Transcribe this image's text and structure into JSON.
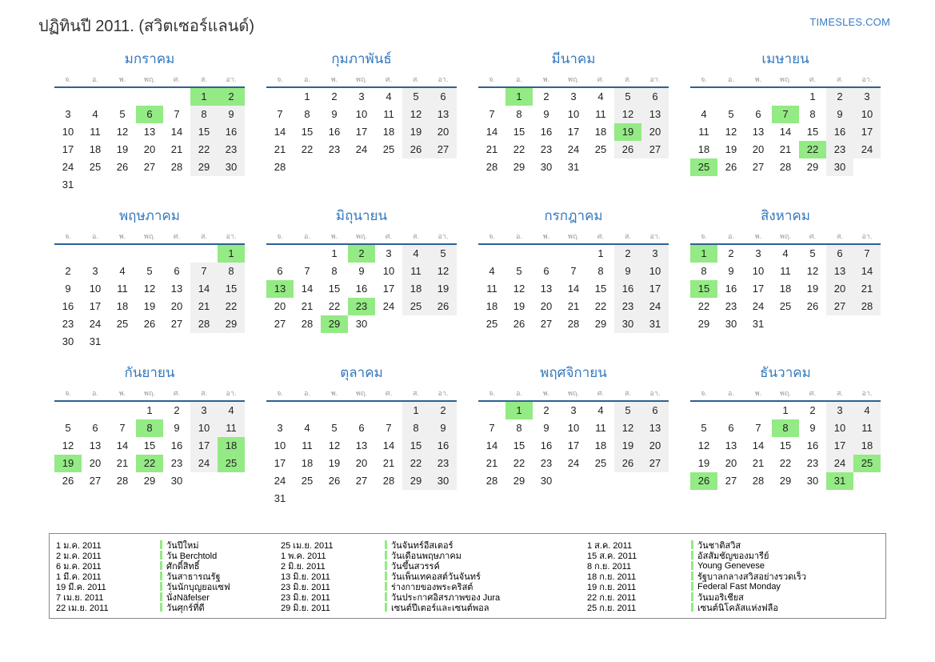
{
  "page": {
    "title": "ปฏิทินปี 2011. (สวิตเซอร์แลนด์)",
    "site": "TIMESLES.COM"
  },
  "colors": {
    "accent_blue": "#3478be",
    "header_line_blue": "#2d6194",
    "holiday_green": "#94ea84",
    "weekend_gray": "#f0f0f0"
  },
  "calendar": {
    "weekday_headers": [
      "จ.",
      "อ.",
      "พ.",
      "พฤ.",
      "ศ.",
      "ส.",
      "อา."
    ],
    "months": [
      {
        "name": "มกราคม",
        "start": 5,
        "days": 31,
        "holidays": [
          1,
          2,
          6
        ]
      },
      {
        "name": "กุมภาพันธ์",
        "start": 1,
        "days": 28,
        "holidays": []
      },
      {
        "name": "มีนาคม",
        "start": 1,
        "days": 31,
        "holidays": [
          1,
          19
        ]
      },
      {
        "name": "เมษายน",
        "start": 4,
        "days": 30,
        "holidays": [
          7,
          22,
          25
        ]
      },
      {
        "name": "พฤษภาคม",
        "start": 6,
        "days": 31,
        "holidays": [
          1
        ]
      },
      {
        "name": "มิถุนายน",
        "start": 2,
        "days": 30,
        "holidays": [
          2,
          13,
          23,
          29
        ]
      },
      {
        "name": "กรกฎาคม",
        "start": 4,
        "days": 31,
        "holidays": []
      },
      {
        "name": "สิงหาคม",
        "start": 0,
        "days": 31,
        "holidays": [
          1,
          15
        ]
      },
      {
        "name": "กันยายน",
        "start": 3,
        "days": 30,
        "holidays": [
          8,
          18,
          19,
          22,
          25
        ]
      },
      {
        "name": "ตุลาคม",
        "start": 5,
        "days": 31,
        "holidays": []
      },
      {
        "name": "พฤศจิกายน",
        "start": 1,
        "days": 30,
        "holidays": [
          1
        ]
      },
      {
        "name": "ธันวาคม",
        "start": 3,
        "days": 31,
        "holidays": [
          8,
          25,
          26,
          31
        ]
      }
    ]
  },
  "legend": {
    "entries": [
      {
        "date": "1 ม.ค. 2011",
        "label": "วันปีใหม่"
      },
      {
        "date": "2 ม.ค. 2011",
        "label": "วัน Berchtold"
      },
      {
        "date": "6 ม.ค. 2011",
        "label": "ศักดิ์สิทธิ์"
      },
      {
        "date": "1 มี.ค. 2011",
        "label": "วันสาธารณรัฐ"
      },
      {
        "date": "19 มี.ค. 2011",
        "label": "วันนักบุญยอแซฟ"
      },
      {
        "date": "7 เม.ย. 2011",
        "label": "นั่งNäfelser"
      },
      {
        "date": "22 เม.ย. 2011",
        "label": "วันศุกร์ที่ดี"
      },
      {
        "date": "25 เม.ย. 2011",
        "label": "วันจันทร์อีสเตอร์"
      },
      {
        "date": "1 พ.ค. 2011",
        "label": "วันเดือนพฤษภาคม"
      },
      {
        "date": "2 มิ.ย. 2011",
        "label": "วันขึ้นสวรรค์"
      },
      {
        "date": "13 มิ.ย. 2011",
        "label": "วันเพ็นเทคอสต์วันจันทร์"
      },
      {
        "date": "23 มิ.ย. 2011",
        "label": "ร่างกายของพระคริสต์"
      },
      {
        "date": "23 มิ.ย. 2011",
        "label": "วันประกาศอิสรภาพของ Jura"
      },
      {
        "date": "29 มิ.ย. 2011",
        "label": "เซนต์ปีเตอร์และเซนต์พอล"
      },
      {
        "date": "1 ส.ค. 2011",
        "label": "วันชาติสวิส"
      },
      {
        "date": "15 ส.ค. 2011",
        "label": "อัสสัมชัญของมารีย์"
      },
      {
        "date": "8 ก.ย. 2011",
        "label": "Young Genevese"
      },
      {
        "date": "18 ก.ย. 2011",
        "label": "รัฐบาลกลางสวิสอย่างรวดเร็ว"
      },
      {
        "date": "19 ก.ย. 2011",
        "label": "Federal Fast Monday"
      },
      {
        "date": "22 ก.ย. 2011",
        "label": "วันมอริเชียส"
      },
      {
        "date": "25 ก.ย. 2011",
        "label": "เซนต์นิโคลัสแห่งฟลือ"
      }
    ],
    "rows_per_column": 7
  }
}
